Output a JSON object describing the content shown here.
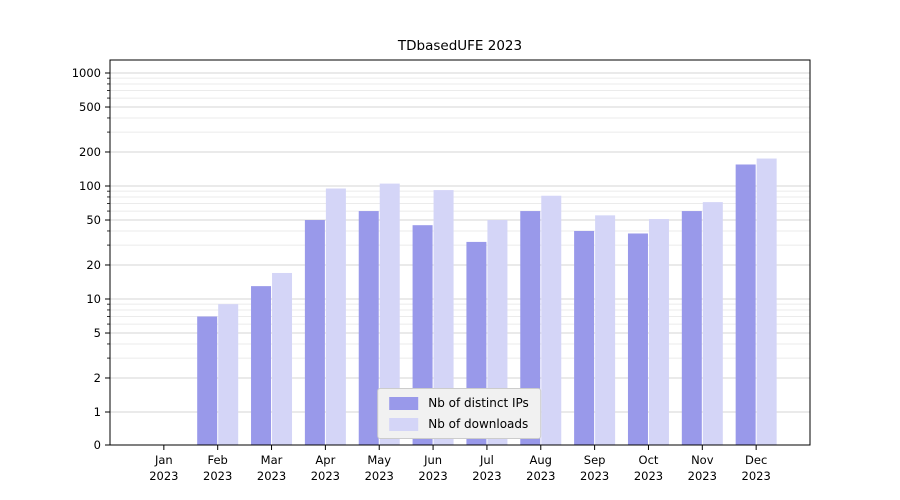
{
  "chart_data": {
    "type": "bar",
    "title": "TDbasedUFE 2023",
    "scale": "symlog",
    "grid": true,
    "legend_position": "lower center",
    "categories": [
      "Jan",
      "Feb",
      "Mar",
      "Apr",
      "May",
      "Jun",
      "Jul",
      "Aug",
      "Sep",
      "Oct",
      "Nov",
      "Dec"
    ],
    "year_label": "2023",
    "y_ticks": [
      0,
      1,
      2,
      5,
      10,
      20,
      50,
      100,
      200,
      500,
      1000
    ],
    "ylim": [
      0,
      1280
    ],
    "series": [
      {
        "name": "Nb of distinct IPs",
        "key": "distinct-ips",
        "color": "#9999ea",
        "values": [
          0,
          7,
          13,
          50,
          60,
          45,
          32,
          60,
          40,
          38,
          60,
          155
        ]
      },
      {
        "name": "Nb of downloads",
        "key": "downloads",
        "color": "#d4d5f7",
        "values": [
          0,
          9,
          17,
          95,
          105,
          92,
          50,
          82,
          55,
          51,
          72,
          175
        ]
      }
    ],
    "grid_colors": {
      "major": "#d6d6d6",
      "minor": "#ebebeb"
    },
    "axis_color": "#000000"
  }
}
